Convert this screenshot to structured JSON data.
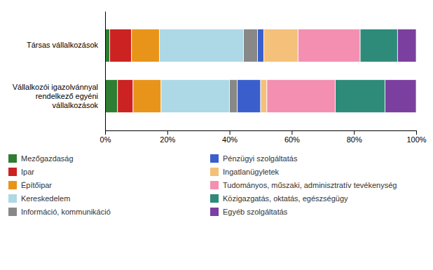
{
  "chart_data": {
    "type": "bar",
    "orientation": "horizontal",
    "stacked": true,
    "categories": [
      "Társas vállalkozások",
      "Vállalkozói igazolvánnyal\nrendelkező egyéni\nvállalkozások"
    ],
    "series": [
      {
        "name": "Mezőgazdaság",
        "color": "#2e7d32",
        "values": [
          1.5,
          4.0
        ]
      },
      {
        "name": "Ipar",
        "color": "#cc2222",
        "values": [
          7.0,
          5.0
        ]
      },
      {
        "name": "Építőipar",
        "color": "#e8941a",
        "values": [
          9.0,
          9.0
        ]
      },
      {
        "name": "Kereskedelem",
        "color": "#add8e6",
        "values": [
          27.0,
          22.0
        ]
      },
      {
        "name": "Információ, kommunikáció",
        "color": "#888888",
        "values": [
          4.5,
          2.5
        ]
      },
      {
        "name": "Pénzügyi szolgáltatás",
        "color": "#3a5fcd",
        "values": [
          2.0,
          7.5
        ]
      },
      {
        "name": "Ingatlanügyletek",
        "color": "#f4c07a",
        "values": [
          11.0,
          2.0
        ]
      },
      {
        "name": "Tudományos, műszaki, adminisztratív tevékenység",
        "color": "#f48fb1",
        "values": [
          20.0,
          22.0
        ]
      },
      {
        "name": "Közigazgatás, oktatás, egészségügy",
        "color": "#2e8b7a",
        "values": [
          12.0,
          16.0
        ]
      },
      {
        "name": "Egyéb szolgáltatás",
        "color": "#7b3fa0",
        "values": [
          6.0,
          10.0
        ]
      }
    ],
    "xlim": [
      0,
      100
    ],
    "xticks": [
      {
        "value": 0,
        "label": "0%"
      },
      {
        "value": 20,
        "label": "20%"
      },
      {
        "value": 40,
        "label": "40%"
      },
      {
        "value": 60,
        "label": "60%"
      },
      {
        "value": 80,
        "label": "80%"
      },
      {
        "value": 100,
        "label": "100%"
      }
    ],
    "grid": false,
    "legend": "bottom"
  }
}
